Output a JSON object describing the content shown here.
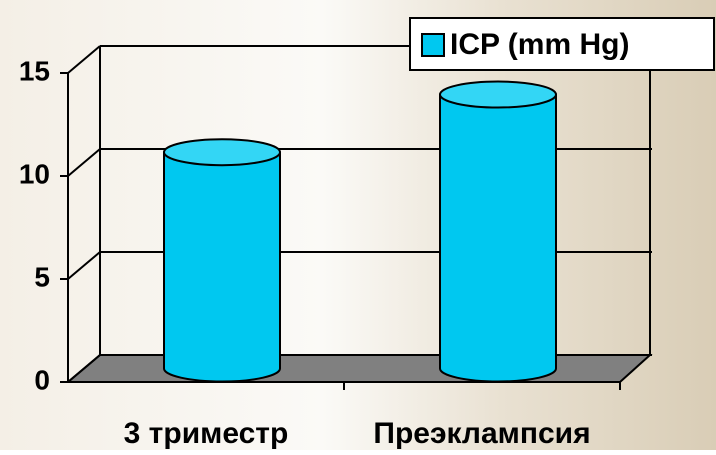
{
  "chart_data": {
    "type": "bar",
    "categories": [
      "3 триместр",
      "Преэклампсия"
    ],
    "series": [
      {
        "name": "ICP (mm Hg)",
        "color": "#00c8f0",
        "values": [
          10.5,
          13.3
        ]
      }
    ],
    "ylim": [
      0,
      15
    ],
    "yticks": [
      0,
      5,
      10,
      15
    ],
    "grid": true,
    "legend": "top-right"
  }
}
